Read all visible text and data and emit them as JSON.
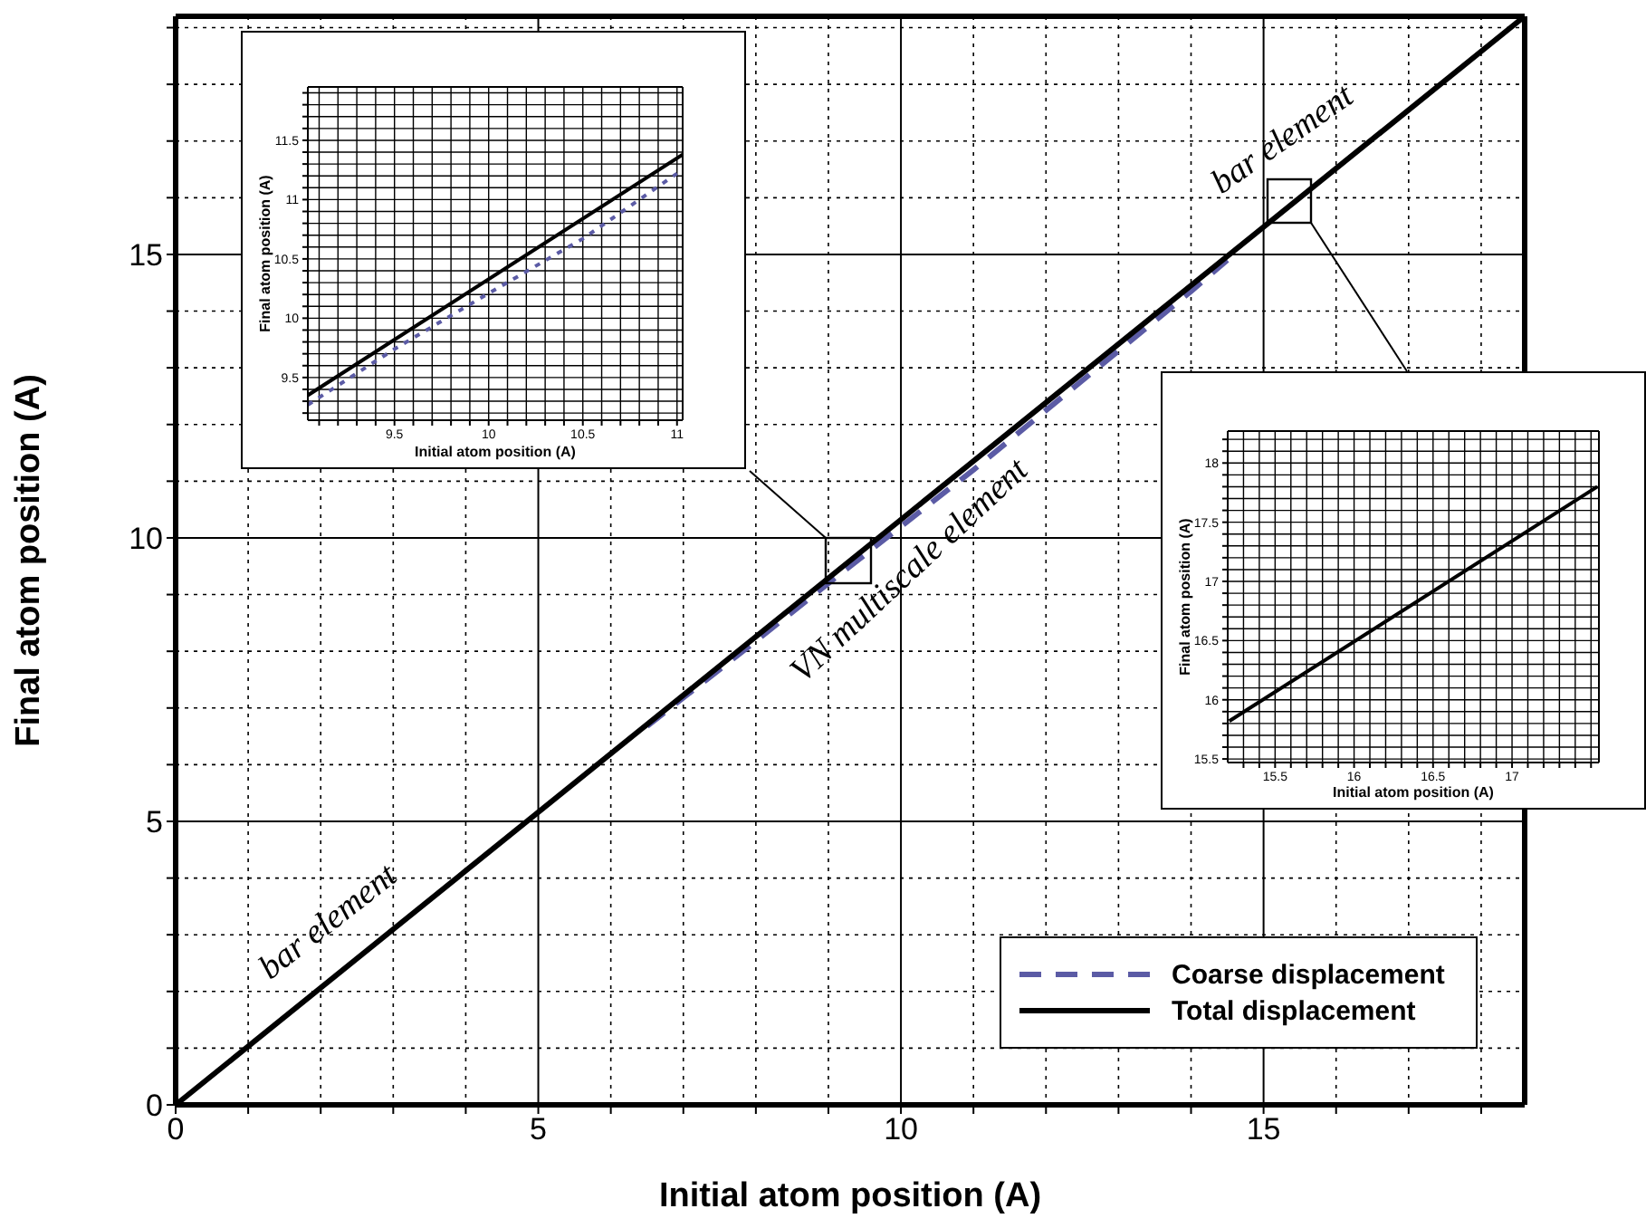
{
  "chart_data": [
    {
      "type": "line",
      "xlabel": "Initial atom position (A)",
      "ylabel": "Final atom position (A)",
      "xlim": [
        0,
        18.6
      ],
      "ylim": [
        0,
        19.2
      ],
      "xticks": [
        0,
        {
          "value": 1,
          "label": null
        },
        {
          "value": 2,
          "label": null
        },
        {
          "value": 3,
          "label": null
        },
        {
          "value": 4,
          "label": null
        },
        5,
        {
          "value": 6,
          "label": null
        },
        {
          "value": 7,
          "label": null
        },
        {
          "value": 8,
          "label": null
        },
        {
          "value": 9,
          "label": null
        },
        10,
        {
          "value": 11,
          "label": null
        },
        {
          "value": 12,
          "label": null
        },
        {
          "value": 13,
          "label": null
        },
        {
          "value": 14,
          "label": null
        },
        15,
        {
          "value": 16,
          "label": null
        },
        {
          "value": 17,
          "label": null
        },
        {
          "value": 18,
          "label": null
        }
      ],
      "yticks": [
        0,
        {
          "value": 1,
          "label": null
        },
        {
          "value": 2,
          "label": null
        },
        {
          "value": 3,
          "label": null
        },
        {
          "value": 4,
          "label": null
        },
        5,
        {
          "value": 6,
          "label": null
        },
        {
          "value": 7,
          "label": null
        },
        {
          "value": 8,
          "label": null
        },
        {
          "value": 9,
          "label": null
        },
        10,
        {
          "value": 11,
          "label": null
        },
        {
          "value": 12,
          "label": null
        },
        {
          "value": 13,
          "label": null
        },
        {
          "value": 14,
          "label": null
        },
        15,
        {
          "value": 16,
          "label": null
        },
        {
          "value": 17,
          "label": null
        },
        {
          "value": 18,
          "label": null
        },
        {
          "value": 19,
          "label": null
        }
      ],
      "grid": true,
      "legend": "bottom right",
      "series": [
        {
          "name": "Coarse displacement",
          "color": "#5b5ba5",
          "line_style": "dashed",
          "x": [
            6.5,
            8,
            9,
            10,
            11,
            12,
            13,
            14,
            14.5
          ],
          "values": [
            6.68,
            8.18,
            9.2,
            10.2,
            11.2,
            12.25,
            13.3,
            14.35,
            14.9
          ]
        },
        {
          "name": "Total displacement",
          "color": "#000000",
          "line_style": "solid",
          "x": [
            0,
            18.6
          ],
          "values": [
            0,
            19.2
          ]
        }
      ],
      "annotations": [
        "bar element",
        "VN multiscale element",
        "bar element"
      ]
    },
    {
      "type": "line",
      "xlabel": "Initial atom position (A)",
      "ylabel": "Final atom position (A)",
      "xlim": [
        9.04,
        11.03
      ],
      "ylim": [
        9.14,
        11.95
      ],
      "xticks": [
        {
          "value": 9.1,
          "label": null
        },
        {
          "value": 9.2,
          "label": null
        },
        {
          "value": 9.3,
          "label": null
        },
        {
          "value": 9.4,
          "label": null
        },
        9.5,
        {
          "value": 9.6,
          "label": null
        },
        {
          "value": 9.7,
          "label": null
        },
        {
          "value": 9.8,
          "label": null
        },
        {
          "value": 9.9,
          "label": null
        },
        10,
        {
          "value": 10.1,
          "label": null
        },
        {
          "value": 10.2,
          "label": null
        },
        {
          "value": 10.3,
          "label": null
        },
        {
          "value": 10.4,
          "label": null
        },
        10.5,
        {
          "value": 10.6,
          "label": null
        },
        {
          "value": 10.7,
          "label": null
        },
        {
          "value": 10.8,
          "label": null
        },
        {
          "value": 10.9,
          "label": null
        },
        11
      ],
      "yticks": [
        {
          "value": 9.2,
          "label": null
        },
        {
          "value": 9.3,
          "label": null
        },
        {
          "value": 9.4,
          "label": null
        },
        9.5,
        {
          "value": 9.6,
          "label": null
        },
        {
          "value": 9.7,
          "label": null
        },
        {
          "value": 9.8,
          "label": null
        },
        {
          "value": 9.9,
          "label": null
        },
        10,
        {
          "value": 10.1,
          "label": null
        },
        {
          "value": 10.2,
          "label": null
        },
        {
          "value": 10.3,
          "label": null
        },
        {
          "value": 10.4,
          "label": null
        },
        10.5,
        {
          "value": 10.6,
          "label": null
        },
        {
          "value": 10.7,
          "label": null
        },
        {
          "value": 10.8,
          "label": null
        },
        {
          "value": 10.9,
          "label": null
        },
        11,
        {
          "value": 11.1,
          "label": null
        },
        {
          "value": 11.2,
          "label": null
        },
        {
          "value": 11.3,
          "label": null
        },
        {
          "value": 11.4,
          "label": null
        },
        11.5,
        {
          "value": 11.6,
          "label": null
        },
        {
          "value": 11.7,
          "label": null
        },
        {
          "value": 11.8,
          "label": null
        },
        {
          "value": 11.9,
          "label": null
        }
      ],
      "grid": true,
      "series": [
        {
          "color": "#5b5ba5",
          "line_style": "dotted",
          "x": [
            9.04,
            9.5,
            10,
            10.5,
            11
          ],
          "values": [
            9.27,
            9.74,
            10.21,
            10.67,
            11.22
          ]
        },
        {
          "color": "#000000",
          "line_style": "solid",
          "x": [
            9.04,
            11.03
          ],
          "values": [
            9.35,
            11.38
          ]
        }
      ]
    },
    {
      "type": "line",
      "xlabel": "Initial atom position (A)",
      "ylabel": "Final atom position (A)",
      "xlim": [
        15.2,
        17.55
      ],
      "ylim": [
        15.47,
        18.27
      ],
      "xticks": [
        {
          "value": 15.3,
          "label": null
        },
        {
          "value": 15.4,
          "label": null
        },
        15.5,
        {
          "value": 15.6,
          "label": null
        },
        {
          "value": 15.7,
          "label": null
        },
        {
          "value": 15.8,
          "label": null
        },
        {
          "value": 15.9,
          "label": null
        },
        16,
        {
          "value": 16.1,
          "label": null
        },
        {
          "value": 16.2,
          "label": null
        },
        {
          "value": 16.3,
          "label": null
        },
        {
          "value": 16.4,
          "label": null
        },
        16.5,
        {
          "value": 16.6,
          "label": null
        },
        {
          "value": 16.7,
          "label": null
        },
        {
          "value": 16.8,
          "label": null
        },
        {
          "value": 16.9,
          "label": null
        },
        17,
        {
          "value": 17.1,
          "label": null
        },
        {
          "value": 17.2,
          "label": null
        },
        {
          "value": 17.3,
          "label": null
        },
        {
          "value": 17.4,
          "label": null
        },
        {
          "value": 17.5,
          "label": null
        }
      ],
      "yticks": [
        15.5,
        {
          "value": 15.6,
          "label": null
        },
        {
          "value": 15.7,
          "label": null
        },
        {
          "value": 15.8,
          "label": null
        },
        {
          "value": 15.9,
          "label": null
        },
        16,
        {
          "value": 16.1,
          "label": null
        },
        {
          "value": 16.2,
          "label": null
        },
        {
          "value": 16.3,
          "label": null
        },
        {
          "value": 16.4,
          "label": null
        },
        16.5,
        {
          "value": 16.6,
          "label": null
        },
        {
          "value": 16.7,
          "label": null
        },
        {
          "value": 16.8,
          "label": null
        },
        {
          "value": 16.9,
          "label": null
        },
        17,
        {
          "value": 17.1,
          "label": null
        },
        {
          "value": 17.2,
          "label": null
        },
        {
          "value": 17.3,
          "label": null
        },
        {
          "value": 17.4,
          "label": null
        },
        17.5,
        {
          "value": 17.6,
          "label": null
        },
        {
          "value": 17.7,
          "label": null
        },
        {
          "value": 17.8,
          "label": null
        },
        {
          "value": 17.9,
          "label": null
        },
        18,
        {
          "value": 18.1,
          "label": null
        },
        {
          "value": 18.2,
          "label": null
        }
      ],
      "grid": true,
      "series": [
        {
          "color": "#000000",
          "line_style": "solid",
          "x": [
            15.21,
            17.54
          ],
          "values": [
            15.82,
            17.8
          ]
        }
      ]
    }
  ]
}
